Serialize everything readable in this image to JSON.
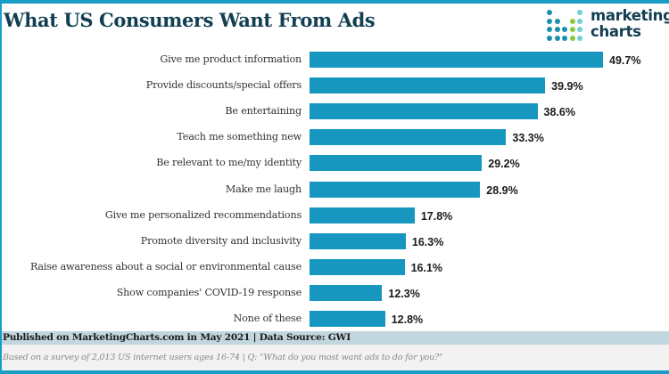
{
  "header": {
    "title": "What US Consumers Want From Ads",
    "logo": {
      "line1": "marketing",
      "line2": "charts",
      "dot_colors": {
        "teal": "#1a8fb0",
        "light_teal": "#6fd0d6",
        "green": "#8cc63f"
      }
    }
  },
  "colors": {
    "bar": "#1797bf",
    "title": "#123e52",
    "border": "#1a9dc4"
  },
  "chart_data": {
    "type": "bar",
    "orientation": "horizontal",
    "title": "What US Consumers Want From Ads",
    "xlabel": "",
    "ylabel": "",
    "unit": "%",
    "grid": false,
    "legend": "none",
    "xlim": [
      0,
      50
    ],
    "categories": [
      "Give me product information",
      "Provide discounts/special offers",
      "Be entertaining",
      "Teach me something new",
      "Be relevant to me/my identity",
      "Make me laugh",
      "Give me personalized recommendations",
      "Promote diversity and inclusivity",
      "Raise awareness about a social or environmental cause",
      "Show companies' COVID-19 response",
      "None of these"
    ],
    "values": [
      49.7,
      39.9,
      38.6,
      33.3,
      29.2,
      28.9,
      17.8,
      16.3,
      16.1,
      12.3,
      12.8
    ],
    "data_labels": [
      "49.7%",
      "39.9%",
      "38.6%",
      "33.3%",
      "29.2%",
      "28.9%",
      "17.8%",
      "16.3%",
      "16.1%",
      "12.3%",
      "12.8%"
    ]
  },
  "footer": {
    "published": "Published on MarketingCharts.com in May 2021 | Data Source: GWI",
    "notes": "Based on a survey of 2,013 US internet users ages 16-74 | Q: \"What do you most want ads to do for you?\""
  }
}
